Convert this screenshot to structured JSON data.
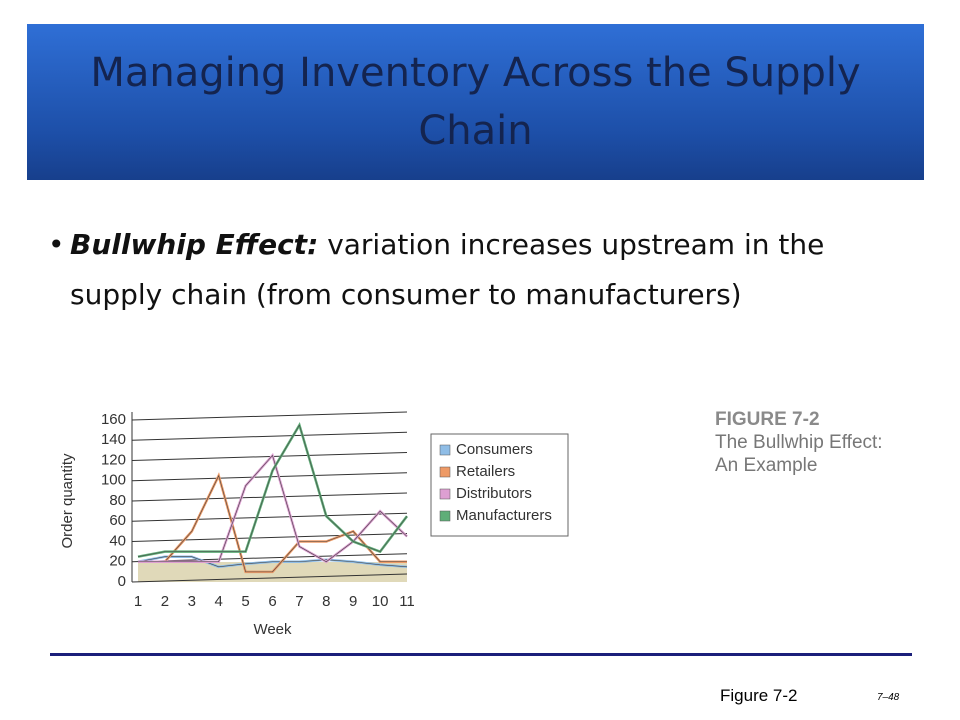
{
  "slide": {
    "title": "Managing Inventory Across the Supply Chain",
    "bullet_term": "Bullwhip Effect:",
    "bullet_text": "variation increases upstream in the supply chain (from consumer to manufacturers)",
    "figure_label": "FIGURE 7-2",
    "figure_title": "The Bullwhip Effect: An Example",
    "figure_note": "Figure 7-2",
    "page_number": "7–48"
  },
  "chart_data": {
    "type": "line",
    "x_label": "Week",
    "y_label": "Order quantity",
    "x": [
      1,
      2,
      3,
      4,
      5,
      6,
      7,
      8,
      9,
      10,
      11
    ],
    "xlim": [
      1,
      11
    ],
    "xticks": [
      1,
      2,
      3,
      4,
      5,
      6,
      7,
      8,
      9,
      10,
      11
    ],
    "ylim": [
      0,
      160
    ],
    "yticks": [
      0,
      20,
      40,
      60,
      80,
      100,
      120,
      140,
      160
    ],
    "grid": true,
    "series": [
      {
        "name": "Consumers",
        "color": "#8fbde6",
        "values": [
          20,
          25,
          25,
          15,
          18,
          20,
          20,
          22,
          20,
          17,
          15
        ]
      },
      {
        "name": "Retailers",
        "color": "#ee9a66",
        "values": [
          20,
          20,
          50,
          105,
          10,
          10,
          40,
          40,
          50,
          20,
          20
        ]
      },
      {
        "name": "Distributors",
        "color": "#de9fd2",
        "values": [
          20,
          20,
          20,
          20,
          95,
          125,
          35,
          20,
          40,
          70,
          45
        ]
      },
      {
        "name": "Manufacturers",
        "color": "#5fae78",
        "values": [
          25,
          30,
          30,
          30,
          30,
          110,
          155,
          65,
          40,
          30,
          65
        ]
      }
    ]
  }
}
